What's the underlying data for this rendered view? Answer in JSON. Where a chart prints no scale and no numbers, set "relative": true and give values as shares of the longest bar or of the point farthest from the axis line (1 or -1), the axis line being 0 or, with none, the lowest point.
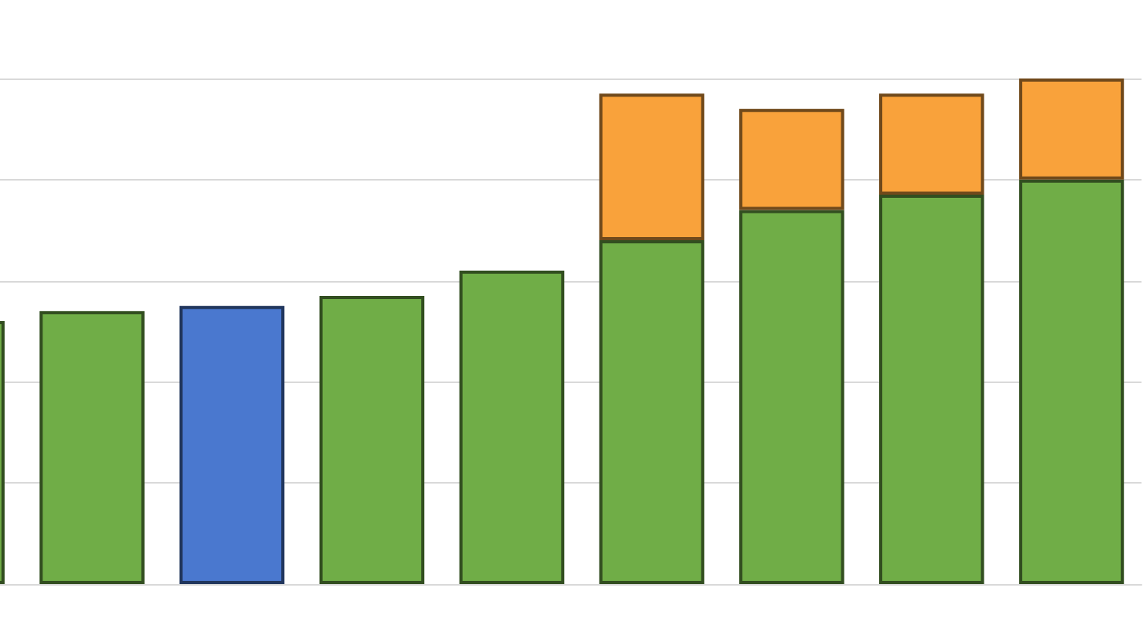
{
  "chart_data": {
    "type": "bar",
    "relative": true,
    "stacked": true,
    "grid": "y",
    "categories": [
      null,
      null,
      null,
      null,
      null,
      null,
      null,
      null,
      null
    ],
    "series": [
      {
        "colors": [
          "#70ad47",
          "#70ad47",
          "#4a78cf",
          "#70ad47",
          "#70ad47",
          "#70ad47",
          "#70ad47",
          "#70ad47",
          "#70ad47"
        ],
        "values": [
          0.52,
          0.54,
          0.55,
          0.57,
          0.62,
          0.68,
          0.74,
          0.77,
          0.8
        ]
      },
      {
        "color": "#f9a23b",
        "values": [
          null,
          null,
          null,
          null,
          null,
          0.29,
          0.2,
          0.2,
          0.2
        ]
      }
    ]
  }
}
